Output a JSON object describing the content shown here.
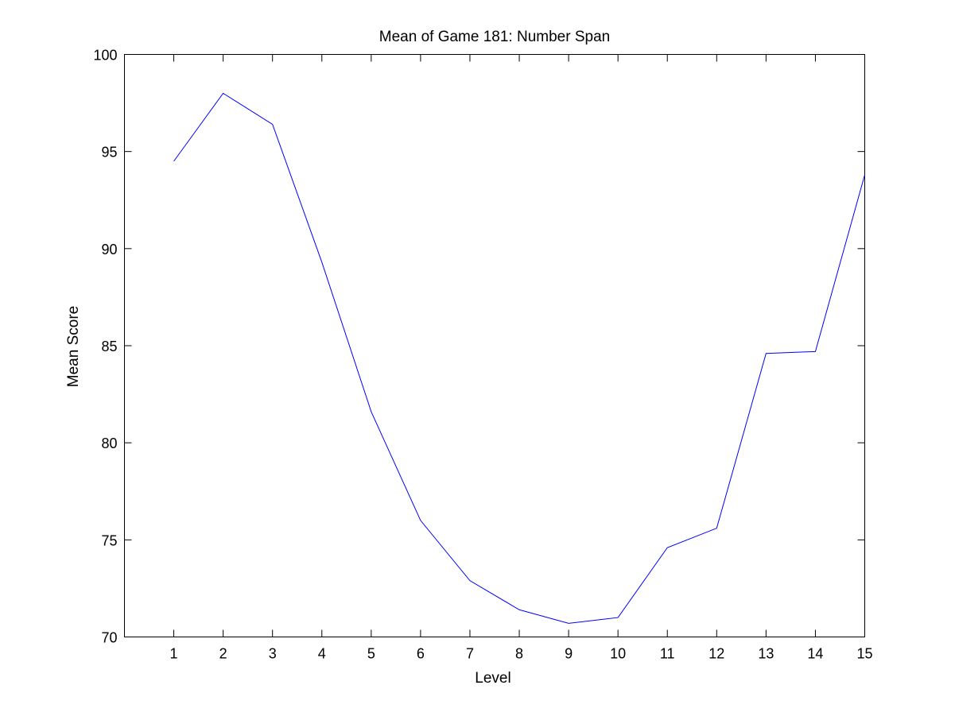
{
  "chart_data": {
    "type": "line",
    "title": "Mean of Game 181: Number Span",
    "xlabel": "Level",
    "ylabel": "Mean Score",
    "xlim": [
      0,
      15
    ],
    "ylim": [
      70,
      100
    ],
    "xticks": [
      1,
      2,
      3,
      4,
      5,
      6,
      7,
      8,
      9,
      10,
      11,
      12,
      13,
      14,
      15
    ],
    "yticks": [
      70,
      75,
      80,
      85,
      90,
      95,
      100
    ],
    "grid": false,
    "legend": "none",
    "line_color": "#0000ff",
    "series": [
      {
        "x": [
          1,
          2,
          3,
          4,
          5,
          6,
          7,
          8,
          9,
          10,
          11,
          12,
          13,
          14,
          15
        ],
        "values": [
          94.5,
          98.0,
          96.4,
          89.3,
          81.6,
          76.0,
          72.9,
          71.4,
          70.7,
          71.0,
          74.6,
          75.6,
          84.6,
          84.7,
          93.8
        ]
      }
    ]
  }
}
